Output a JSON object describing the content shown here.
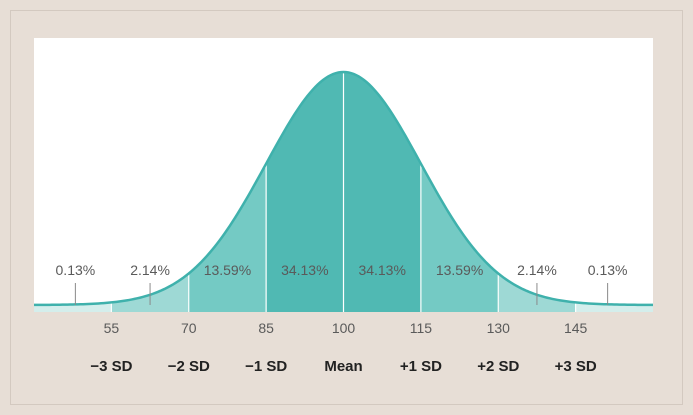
{
  "chart_data": {
    "type": "area",
    "title": "",
    "xlabel": "",
    "ylabel": "",
    "mean": 100,
    "sd": 15,
    "xlim": [
      40,
      160
    ],
    "ticks": [
      55,
      70,
      85,
      100,
      115,
      130,
      145
    ],
    "sd_labels": [
      "−3 SD",
      "−2 SD",
      "−1 SD",
      "Mean",
      "+1 SD",
      "+2 SD",
      "+3 SD"
    ],
    "regions": [
      {
        "from": 40,
        "to": 55,
        "percent": "0.13%"
      },
      {
        "from": 55,
        "to": 70,
        "percent": "2.14%"
      },
      {
        "from": 70,
        "to": 85,
        "percent": "13.59%"
      },
      {
        "from": 85,
        "to": 100,
        "percent": "34.13%"
      },
      {
        "from": 100,
        "to": 115,
        "percent": "34.13%"
      },
      {
        "from": 115,
        "to": 130,
        "percent": "13.59%"
      },
      {
        "from": 130,
        "to": 145,
        "percent": "2.14%"
      },
      {
        "from": 145,
        "to": 160,
        "percent": "0.13%"
      }
    ],
    "colors": {
      "plot_background": "#ffffff",
      "curve": "#3fb1ac",
      "tail": "#d4eeec",
      "outer": "#9ed9d5",
      "middle": "#74cac4",
      "center": "#50b9b3",
      "gridline": "#ffffff"
    }
  }
}
